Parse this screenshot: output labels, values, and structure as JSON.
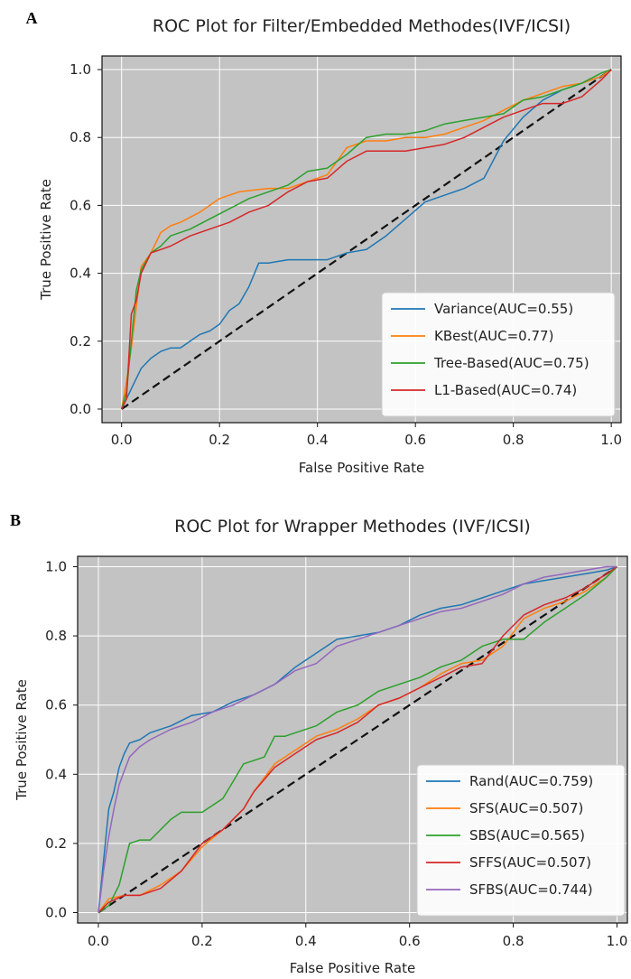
{
  "chart_data": [
    {
      "panel_letter": "A",
      "type": "line",
      "title": "ROC Plot for Filter/Embedded Methodes(IVF/ICSI)",
      "xlabel": "False Positive Rate",
      "ylabel": "True Positive Rate",
      "xlim": [
        -0.04,
        1.02
      ],
      "ylim": [
        -0.04,
        1.04
      ],
      "xticks": [
        0.0,
        0.2,
        0.4,
        0.6,
        0.8,
        1.0
      ],
      "xtick_labels": [
        "0.0",
        "0.2",
        "0.4",
        "0.6",
        "0.8",
        "1.0"
      ],
      "yticks": [
        0.0,
        0.2,
        0.4,
        0.6,
        0.8,
        1.0
      ],
      "ytick_labels": [
        "0.0",
        "0.2",
        "0.4",
        "0.6",
        "0.8",
        "1.0"
      ],
      "grid": true,
      "legend_position": "lower-right",
      "background": "#c3c3c3",
      "diagonal": {
        "x": [
          0,
          1
        ],
        "y": [
          0,
          1
        ],
        "color": "#111111",
        "style": "dashed"
      },
      "series": [
        {
          "name": "Variance(AUC=0.55)",
          "color": "#1f77b4",
          "x": [
            0,
            0.02,
            0.04,
            0.06,
            0.08,
            0.1,
            0.12,
            0.14,
            0.16,
            0.18,
            0.2,
            0.22,
            0.24,
            0.26,
            0.28,
            0.3,
            0.34,
            0.38,
            0.42,
            0.46,
            0.5,
            0.54,
            0.58,
            0.62,
            0.66,
            0.7,
            0.74,
            0.78,
            0.82,
            0.86,
            0.9,
            0.94,
            0.98,
            1.0
          ],
          "y": [
            0,
            0.06,
            0.12,
            0.15,
            0.17,
            0.18,
            0.18,
            0.2,
            0.22,
            0.23,
            0.25,
            0.29,
            0.31,
            0.36,
            0.43,
            0.43,
            0.44,
            0.44,
            0.44,
            0.46,
            0.47,
            0.51,
            0.56,
            0.61,
            0.63,
            0.65,
            0.68,
            0.79,
            0.86,
            0.91,
            0.94,
            0.96,
            0.98,
            1.0
          ]
        },
        {
          "name": "KBest(AUC=0.77)",
          "color": "#ff7f0e",
          "x": [
            0,
            0.01,
            0.02,
            0.03,
            0.04,
            0.06,
            0.08,
            0.1,
            0.12,
            0.16,
            0.2,
            0.24,
            0.3,
            0.34,
            0.38,
            0.42,
            0.46,
            0.5,
            0.54,
            0.58,
            0.62,
            0.66,
            0.7,
            0.74,
            0.78,
            0.82,
            0.86,
            0.9,
            0.94,
            0.98,
            1.0
          ],
          "y": [
            0,
            0.08,
            0.18,
            0.3,
            0.42,
            0.46,
            0.52,
            0.54,
            0.55,
            0.58,
            0.62,
            0.64,
            0.65,
            0.65,
            0.67,
            0.69,
            0.77,
            0.79,
            0.79,
            0.8,
            0.8,
            0.81,
            0.83,
            0.85,
            0.88,
            0.91,
            0.93,
            0.95,
            0.96,
            0.98,
            1.0
          ]
        },
        {
          "name": "Tree-Based(AUC=0.75)",
          "color": "#2ca02c",
          "x": [
            0,
            0.01,
            0.02,
            0.03,
            0.04,
            0.06,
            0.08,
            0.1,
            0.14,
            0.18,
            0.22,
            0.26,
            0.3,
            0.34,
            0.38,
            0.42,
            0.46,
            0.5,
            0.54,
            0.58,
            0.62,
            0.66,
            0.7,
            0.74,
            0.78,
            0.82,
            0.86,
            0.9,
            0.94,
            0.98,
            1.0
          ],
          "y": [
            0,
            0.05,
            0.2,
            0.35,
            0.41,
            0.46,
            0.48,
            0.51,
            0.53,
            0.56,
            0.59,
            0.62,
            0.64,
            0.66,
            0.7,
            0.71,
            0.75,
            0.8,
            0.81,
            0.81,
            0.82,
            0.84,
            0.85,
            0.86,
            0.87,
            0.91,
            0.92,
            0.94,
            0.96,
            0.99,
            1.0
          ]
        },
        {
          "name": "L1-Based(AUC=0.74)",
          "color": "#d62728",
          "x": [
            0,
            0.01,
            0.02,
            0.03,
            0.04,
            0.06,
            0.08,
            0.1,
            0.14,
            0.18,
            0.22,
            0.26,
            0.3,
            0.34,
            0.38,
            0.42,
            0.46,
            0.5,
            0.54,
            0.58,
            0.62,
            0.66,
            0.7,
            0.74,
            0.78,
            0.82,
            0.86,
            0.9,
            0.94,
            0.98,
            1.0
          ],
          "y": [
            0,
            0.03,
            0.28,
            0.32,
            0.4,
            0.46,
            0.47,
            0.48,
            0.51,
            0.53,
            0.55,
            0.58,
            0.6,
            0.64,
            0.67,
            0.68,
            0.73,
            0.76,
            0.76,
            0.76,
            0.77,
            0.78,
            0.8,
            0.83,
            0.86,
            0.88,
            0.9,
            0.9,
            0.92,
            0.97,
            1.0
          ]
        }
      ]
    },
    {
      "panel_letter": "B",
      "type": "line",
      "title": "ROC Plot for Wrapper Methodes (IVF/ICSI)",
      "xlabel": "False Positive Rate",
      "ylabel": "True Positive Rate",
      "xlim": [
        -0.04,
        1.02
      ],
      "ylim": [
        -0.03,
        1.03
      ],
      "xticks": [
        0.0,
        0.2,
        0.4,
        0.6,
        0.8,
        1.0
      ],
      "xtick_labels": [
        "0.0",
        "0.2",
        "0.4",
        "0.6",
        "0.8",
        "1.0"
      ],
      "yticks": [
        0.0,
        0.2,
        0.4,
        0.6,
        0.8,
        1.0
      ],
      "ytick_labels": [
        "0.0",
        "0.2",
        "0.4",
        "0.6",
        "0.8",
        "1.0"
      ],
      "grid": true,
      "legend_position": "lower-right",
      "background": "#c3c3c3",
      "diagonal": {
        "x": [
          0,
          1
        ],
        "y": [
          0,
          1
        ],
        "color": "#111111",
        "style": "dashed"
      },
      "series": [
        {
          "name": "Rand(AUC=0.759)",
          "color": "#1f77b4",
          "x": [
            0,
            0.01,
            0.02,
            0.03,
            0.04,
            0.05,
            0.06,
            0.08,
            0.1,
            0.14,
            0.18,
            0.22,
            0.26,
            0.3,
            0.34,
            0.38,
            0.42,
            0.46,
            0.5,
            0.54,
            0.58,
            0.62,
            0.66,
            0.7,
            0.74,
            0.78,
            0.82,
            0.86,
            0.9,
            0.94,
            0.98,
            1.0
          ],
          "y": [
            0,
            0.15,
            0.3,
            0.35,
            0.42,
            0.46,
            0.49,
            0.5,
            0.52,
            0.54,
            0.57,
            0.58,
            0.61,
            0.63,
            0.66,
            0.71,
            0.75,
            0.79,
            0.8,
            0.81,
            0.83,
            0.86,
            0.88,
            0.89,
            0.91,
            0.93,
            0.95,
            0.96,
            0.97,
            0.98,
            0.99,
            1.0
          ]
        },
        {
          "name": "SFS(AUC=0.507)",
          "color": "#ff7f0e",
          "x": [
            0,
            0.02,
            0.05,
            0.08,
            0.12,
            0.16,
            0.2,
            0.24,
            0.28,
            0.3,
            0.34,
            0.38,
            0.42,
            0.46,
            0.5,
            0.54,
            0.58,
            0.62,
            0.66,
            0.7,
            0.74,
            0.78,
            0.82,
            0.86,
            0.9,
            0.94,
            0.98,
            1.0
          ],
          "y": [
            0,
            0.04,
            0.05,
            0.05,
            0.08,
            0.12,
            0.19,
            0.24,
            0.3,
            0.35,
            0.43,
            0.47,
            0.51,
            0.53,
            0.56,
            0.6,
            0.62,
            0.65,
            0.69,
            0.72,
            0.73,
            0.77,
            0.85,
            0.88,
            0.9,
            0.93,
            0.97,
            1.0
          ]
        },
        {
          "name": "SBS(AUC=0.565)",
          "color": "#2ca02c",
          "x": [
            0,
            0.02,
            0.04,
            0.06,
            0.08,
            0.1,
            0.12,
            0.14,
            0.16,
            0.18,
            0.2,
            0.24,
            0.26,
            0.28,
            0.32,
            0.34,
            0.36,
            0.38,
            0.42,
            0.46,
            0.5,
            0.54,
            0.58,
            0.62,
            0.66,
            0.7,
            0.74,
            0.78,
            0.82,
            0.86,
            0.9,
            0.94,
            0.98,
            1.0
          ],
          "y": [
            0,
            0.02,
            0.08,
            0.2,
            0.21,
            0.21,
            0.24,
            0.27,
            0.29,
            0.29,
            0.29,
            0.33,
            0.38,
            0.43,
            0.45,
            0.51,
            0.51,
            0.52,
            0.54,
            0.58,
            0.6,
            0.64,
            0.66,
            0.68,
            0.71,
            0.73,
            0.77,
            0.79,
            0.79,
            0.84,
            0.88,
            0.92,
            0.97,
            1.0
          ]
        },
        {
          "name": "SFFS(AUC=0.507)",
          "color": "#d62728",
          "x": [
            0,
            0.02,
            0.05,
            0.08,
            0.12,
            0.16,
            0.2,
            0.24,
            0.28,
            0.3,
            0.34,
            0.38,
            0.42,
            0.46,
            0.5,
            0.54,
            0.58,
            0.62,
            0.66,
            0.7,
            0.74,
            0.78,
            0.82,
            0.86,
            0.9,
            0.94,
            0.98,
            1.0
          ],
          "y": [
            0,
            0.03,
            0.05,
            0.05,
            0.07,
            0.12,
            0.2,
            0.24,
            0.3,
            0.35,
            0.42,
            0.46,
            0.5,
            0.52,
            0.55,
            0.6,
            0.62,
            0.65,
            0.68,
            0.71,
            0.72,
            0.8,
            0.86,
            0.89,
            0.91,
            0.94,
            0.98,
            1.0
          ]
        },
        {
          "name": "SFBS(AUC=0.744)",
          "color": "#9467bd",
          "x": [
            0,
            0.01,
            0.02,
            0.03,
            0.04,
            0.05,
            0.06,
            0.08,
            0.1,
            0.14,
            0.18,
            0.22,
            0.26,
            0.3,
            0.34,
            0.38,
            0.42,
            0.46,
            0.5,
            0.54,
            0.58,
            0.62,
            0.66,
            0.7,
            0.74,
            0.78,
            0.82,
            0.86,
            0.9,
            0.94,
            0.98,
            1.0
          ],
          "y": [
            0,
            0.12,
            0.22,
            0.3,
            0.37,
            0.41,
            0.45,
            0.48,
            0.5,
            0.53,
            0.55,
            0.58,
            0.6,
            0.63,
            0.66,
            0.7,
            0.72,
            0.77,
            0.79,
            0.81,
            0.83,
            0.85,
            0.87,
            0.88,
            0.9,
            0.92,
            0.95,
            0.97,
            0.98,
            0.99,
            1.0,
            1.0
          ]
        }
      ]
    }
  ]
}
